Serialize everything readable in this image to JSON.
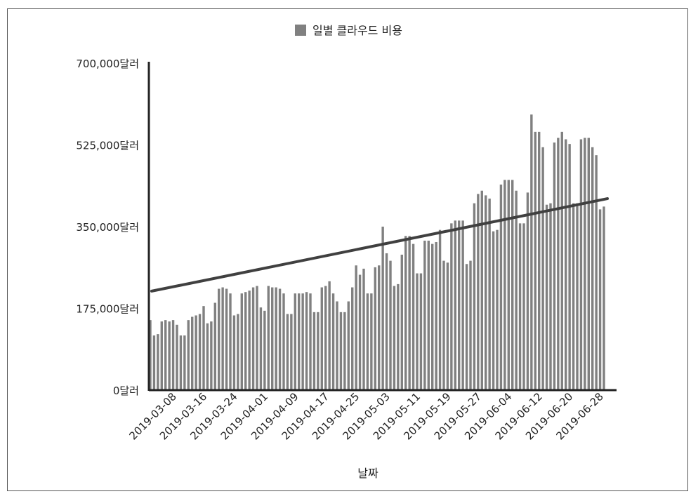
{
  "chart_data": {
    "type": "bar",
    "legend": {
      "label": "일별 클라우드 비용",
      "position": "top-center"
    },
    "xlabel": "날짜",
    "ylabel": "",
    "ylim": [
      0,
      700000
    ],
    "grid": false,
    "y_ticks": [
      {
        "value": 0,
        "label": "0달러"
      },
      {
        "value": 175000,
        "label": "175,000달러"
      },
      {
        "value": 350000,
        "label": "350,000달러"
      },
      {
        "value": 525000,
        "label": "525,000달러"
      },
      {
        "value": 700000,
        "label": "700,000달러"
      }
    ],
    "x_ticks": [
      "2019-03-08",
      "2019-03-16",
      "2019-03-24",
      "2019-04-01",
      "2019-04-09",
      "2019-04-17",
      "2019-04-25",
      "2019-05-03",
      "2019-05-11",
      "2019-05-19",
      "2019-05-27",
      "2019-06-04",
      "2019-06-12",
      "2019-06-20",
      "2019-06-28"
    ],
    "x_start": "2019-03-01",
    "values": [
      150000,
      117000,
      120000,
      147000,
      150000,
      147000,
      150000,
      140000,
      117000,
      117000,
      150000,
      157000,
      160000,
      163000,
      180000,
      143000,
      147000,
      187000,
      217000,
      220000,
      217000,
      207000,
      160000,
      163000,
      207000,
      210000,
      213000,
      220000,
      223000,
      177000,
      170000,
      223000,
      220000,
      220000,
      217000,
      207000,
      163000,
      163000,
      207000,
      207000,
      207000,
      210000,
      207000,
      167000,
      167000,
      220000,
      223000,
      233000,
      207000,
      190000,
      167000,
      167000,
      190000,
      220000,
      267000,
      247000,
      260000,
      207000,
      207000,
      263000,
      267000,
      350000,
      293000,
      277000,
      223000,
      227000,
      290000,
      330000,
      330000,
      313000,
      250000,
      250000,
      320000,
      320000,
      313000,
      317000,
      343000,
      277000,
      273000,
      357000,
      363000,
      363000,
      363000,
      270000,
      277000,
      400000,
      420000,
      427000,
      417000,
      410000,
      340000,
      343000,
      440000,
      450000,
      450000,
      450000,
      427000,
      357000,
      357000,
      423000,
      590000,
      553000,
      553000,
      520000,
      397000,
      400000,
      530000,
      540000,
      553000,
      537000,
      527000,
      400000,
      400000,
      537000,
      540000,
      540000,
      520000,
      503000,
      387000,
      393000
    ],
    "trendline": {
      "start": 212000,
      "end": 410000
    }
  }
}
